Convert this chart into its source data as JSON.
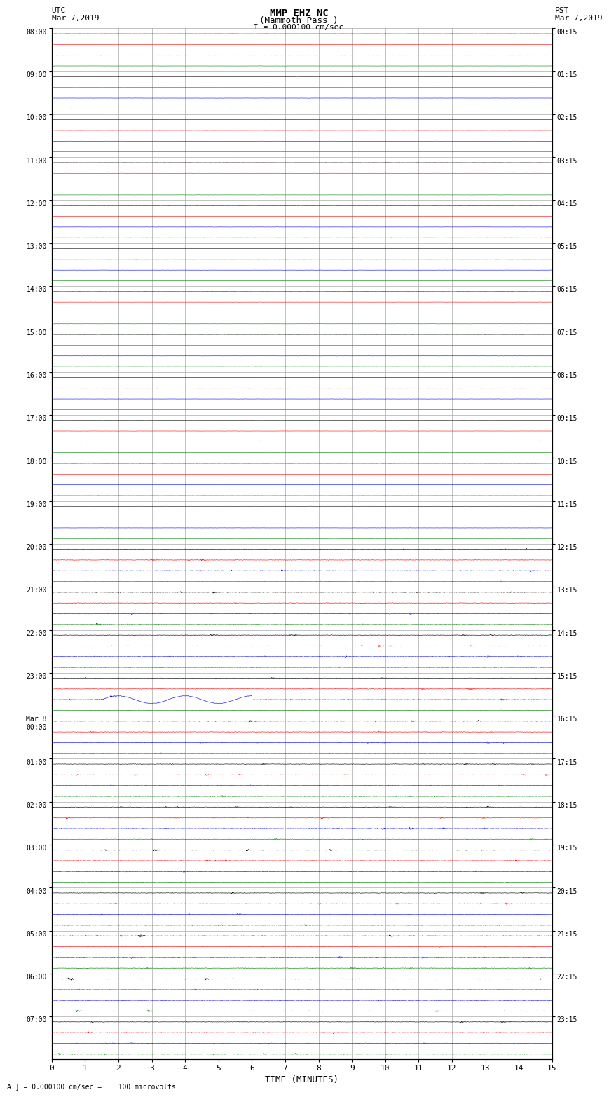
{
  "title_line1": "MMP EHZ NC",
  "title_line2": "(Mammoth Pass )",
  "title_line3": "I = 0.000100 cm/sec",
  "left_label_top": "UTC",
  "left_label_date": "Mar 7,2019",
  "right_label_top": "PST",
  "right_label_date": "Mar 7,2019",
  "xlabel": "TIME (MINUTES)",
  "footnote": "A ] = 0.000100 cm/sec =    100 microvolts",
  "utc_times_major": [
    "08:00",
    "09:00",
    "10:00",
    "11:00",
    "12:00",
    "13:00",
    "14:00",
    "15:00",
    "16:00",
    "17:00",
    "18:00",
    "19:00",
    "20:00",
    "21:00",
    "22:00",
    "23:00",
    "Mar 8\n00:00",
    "01:00",
    "02:00",
    "03:00",
    "04:00",
    "05:00",
    "06:00",
    "07:00"
  ],
  "pst_times_major": [
    "00:15",
    "01:15",
    "02:15",
    "03:15",
    "04:15",
    "05:15",
    "06:15",
    "07:15",
    "08:15",
    "09:15",
    "10:15",
    "11:15",
    "12:15",
    "13:15",
    "14:15",
    "15:15",
    "16:15",
    "17:15",
    "18:15",
    "19:15",
    "20:15",
    "21:15",
    "22:15",
    "23:15"
  ],
  "num_hours": 24,
  "traces_per_hour": 4,
  "time_min": 0,
  "time_max": 15,
  "bg_color": "#ffffff",
  "trace_colors": [
    "black",
    "red",
    "blue",
    "green"
  ],
  "grid_color": "#aaaaaa",
  "quiet_rows": [
    0,
    1,
    2,
    3,
    4,
    5,
    6,
    7,
    8,
    9,
    10,
    11
  ],
  "active_rows": [
    12,
    13,
    14,
    15,
    16,
    17,
    18,
    19,
    20,
    21,
    22,
    23
  ],
  "noise_amp_quiet": 0.006,
  "noise_amp_active": 0.018,
  "spike_amp": 0.12
}
